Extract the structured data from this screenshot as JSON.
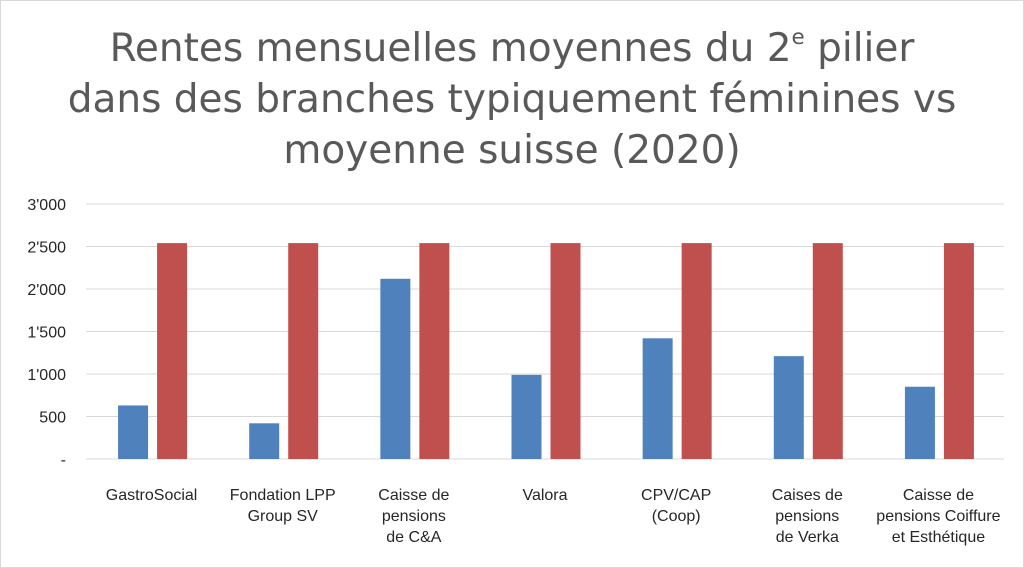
{
  "chart_data": {
    "type": "bar",
    "title": {
      "line1_before_sup": "Rentes mensuelles moyennes du 2",
      "line1_sup": "e",
      "line1_after_sup": " pilier",
      "line2": "dans des branches typiquement féminines vs",
      "line3": "moyenne suisse (2020)"
    },
    "categories": [
      "GastroSocial",
      "Fondation LPP\nGroup SV",
      "Caisse de\npensions\nde C&A",
      "Valora",
      "CPV/CAP\n(Coop)",
      "Caises de\npensions\nde Verka",
      "Caisse de\npensions Coiffure\net Esthétique"
    ],
    "series": [
      {
        "values": [
          630,
          420,
          2120,
          990,
          1420,
          1210,
          850
        ],
        "color": "#4f81bd"
      },
      {
        "values": [
          2540,
          2540,
          2540,
          2540,
          2540,
          2540,
          2540
        ],
        "color": "#c0504d"
      }
    ],
    "ylim": [
      0,
      3000
    ],
    "yticks": [
      0,
      500,
      1000,
      1500,
      2000,
      2500,
      3000
    ],
    "ytick_labels": [
      "-",
      "500",
      "1'000",
      "1'500",
      "2'000",
      "2'500",
      "3'000"
    ],
    "grid": true,
    "legend": "none",
    "xlabel": "",
    "ylabel": ""
  }
}
